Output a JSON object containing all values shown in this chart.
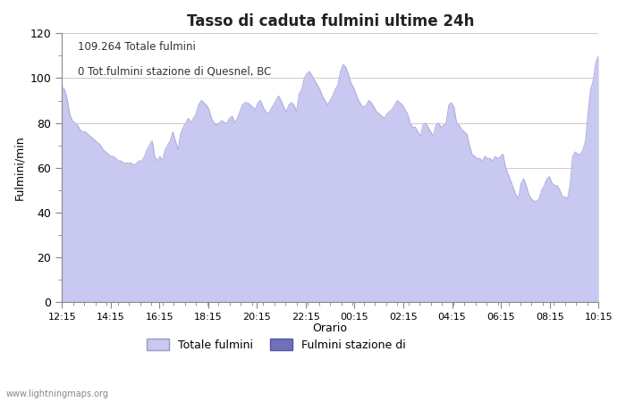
{
  "title": "Tasso di caduta fulmini ultime 24h",
  "xlabel": "Orario",
  "ylabel": "Fulmini/min",
  "annotation_line1": "109.264 Totale fulmini",
  "annotation_line2": "0 Tot.fulmini stazione di Quesnel, BC",
  "watermark": "www.lightningmaps.org",
  "legend_label1": "Totale fulmini",
  "legend_label2": "Fulmini stazione di",
  "fill_color": "#c8c8f0",
  "fill_color2": "#7070bb",
  "line_color": "#b0b0e0",
  "ylim": [
    0,
    120
  ],
  "yticks": [
    0,
    20,
    40,
    60,
    80,
    100,
    120
  ],
  "xtick_labels": [
    "12:15",
    "14:15",
    "16:15",
    "18:15",
    "20:15",
    "22:15",
    "00:15",
    "02:15",
    "04:15",
    "06:15",
    "08:15",
    "10:15"
  ],
  "y_values": [
    96,
    95,
    91,
    84,
    81,
    80,
    79,
    77,
    76,
    76,
    75,
    74,
    73,
    72,
    71,
    70,
    68,
    67,
    66,
    65,
    65,
    64,
    63,
    63,
    62,
    62,
    62,
    62,
    61,
    62,
    63,
    63,
    65,
    68,
    70,
    72,
    65,
    63,
    65,
    63,
    68,
    70,
    72,
    76,
    72,
    68,
    75,
    78,
    80,
    82,
    80,
    82,
    84,
    88,
    90,
    89,
    88,
    86,
    82,
    80,
    79,
    80,
    81,
    80,
    80,
    82,
    83,
    80,
    82,
    85,
    88,
    89,
    89,
    88,
    87,
    86,
    89,
    90,
    87,
    85,
    84,
    86,
    88,
    90,
    92,
    90,
    87,
    85,
    88,
    89,
    88,
    85,
    93,
    95,
    100,
    102,
    103,
    101,
    99,
    97,
    95,
    92,
    90,
    88,
    90,
    92,
    95,
    97,
    103,
    106,
    105,
    102,
    98,
    96,
    93,
    90,
    88,
    87,
    88,
    90,
    89,
    87,
    85,
    84,
    83,
    82,
    84,
    85,
    86,
    88,
    90,
    89,
    88,
    86,
    84,
    80,
    78,
    78,
    76,
    74,
    79,
    80,
    78,
    76,
    74,
    79,
    80,
    78,
    79,
    80,
    88,
    89,
    87,
    80,
    79,
    77,
    76,
    75,
    70,
    66,
    65,
    64,
    64,
    63,
    65,
    64,
    64,
    63,
    65,
    64,
    65,
    66,
    60,
    57,
    54,
    51,
    48,
    46,
    53,
    55,
    52,
    48,
    46,
    45,
    45,
    46,
    50,
    52,
    55,
    56,
    53,
    52,
    52,
    50,
    47,
    47,
    46,
    52,
    65,
    67,
    66,
    66,
    68,
    72,
    85,
    95,
    99,
    107,
    110
  ]
}
